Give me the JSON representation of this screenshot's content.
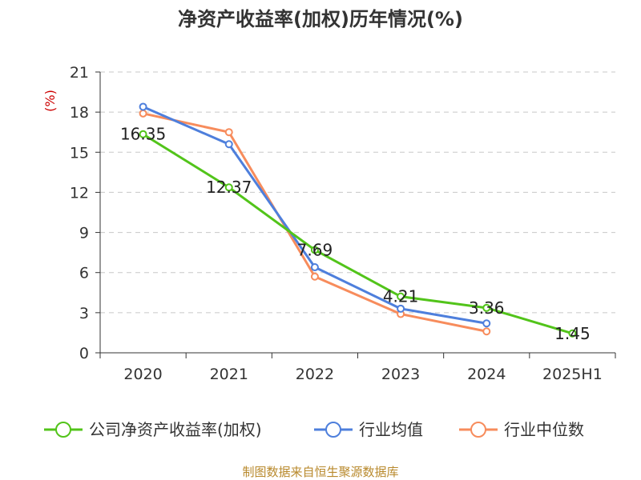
{
  "chart_data": {
    "type": "line",
    "title": "净资产收益率(加权)历年情况(%)",
    "ylabel": "(%)",
    "xlabel": "",
    "categories": [
      "2020",
      "2021",
      "2022",
      "2023",
      "2024",
      "2025H1"
    ],
    "ylim": [
      0,
      21
    ],
    "yticks": [
      0,
      3,
      6,
      9,
      12,
      15,
      18,
      21
    ],
    "grid": true,
    "legend_position": "bottom",
    "series": [
      {
        "name": "公司净资产收益率(加权)",
        "color": "#52c41a",
        "values": [
          16.35,
          12.37,
          7.69,
          4.21,
          3.36,
          1.45
        ],
        "labels": [
          "16.35",
          "12.37",
          "7.69",
          "4.21",
          "3.36",
          "1.45"
        ]
      },
      {
        "name": "行业均值",
        "color": "#4e7fdc",
        "values": [
          18.4,
          15.6,
          6.4,
          3.3,
          2.2,
          null
        ]
      },
      {
        "name": "行业中位数",
        "color": "#f78c5c",
        "values": [
          17.9,
          16.5,
          5.7,
          2.9,
          1.6,
          null
        ]
      }
    ]
  },
  "source": "制图数据来自恒生聚源数据库"
}
